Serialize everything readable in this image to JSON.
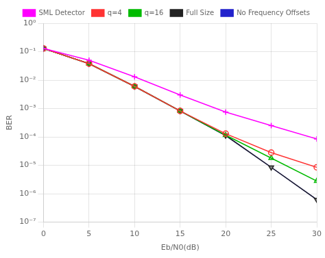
{
  "chart_data": {
    "type": "line",
    "xlabel": "Eb/N0(dB)",
    "ylabel": "BER",
    "x": [
      0,
      5,
      10,
      15,
      20,
      25,
      30
    ],
    "xlim": [
      0,
      30
    ],
    "xticks": [
      0,
      5,
      10,
      15,
      20,
      25,
      30
    ],
    "ylim": [
      1e-07,
      1
    ],
    "yticks": [
      {
        "value": 1e-07,
        "label": "10⁻⁷"
      },
      {
        "value": 1e-06,
        "label": "10⁻⁶"
      },
      {
        "value": 1e-05,
        "label": "10⁻⁵"
      },
      {
        "value": 0.0001,
        "label": "10⁻⁴"
      },
      {
        "value": 0.001,
        "label": "10⁻³"
      },
      {
        "value": 0.01,
        "label": "10⁻²"
      },
      {
        "value": 0.1,
        "label": "10⁻¹"
      },
      {
        "value": 1,
        "label": "10⁰"
      }
    ],
    "log": "y",
    "grid": true,
    "legend": "upper right",
    "series": [
      {
        "name": "SML Detector",
        "color": "#ff00ff",
        "marker": "+",
        "values": [
          0.13,
          0.05,
          0.013,
          0.003,
          0.00075,
          0.00025,
          8.5e-05
        ]
      },
      {
        "name": "q=4",
        "color": "#ff3333",
        "marker": "o",
        "values": [
          0.13,
          0.038,
          0.006,
          0.00082,
          0.00013,
          2.8e-05,
          8.5e-06
        ]
      },
      {
        "name": "q=16",
        "color": "#00bb00",
        "marker": "^",
        "values": [
          0.13,
          0.038,
          0.006,
          0.00082,
          0.000115,
          1.8e-05,
          2.8e-06
        ]
      },
      {
        "name": "Full Size",
        "color": "#222222",
        "marker": "v",
        "values": [
          0.13,
          0.038,
          0.006,
          0.00082,
          0.000112,
          8.5e-06,
          6.2e-07
        ]
      },
      {
        "name": "No Frequency Offsets",
        "color": "#2222cc",
        "values": [
          0.13,
          0.038,
          0.006,
          0.00082,
          0.000112,
          8.5e-06,
          6.2e-07
        ]
      }
    ]
  }
}
